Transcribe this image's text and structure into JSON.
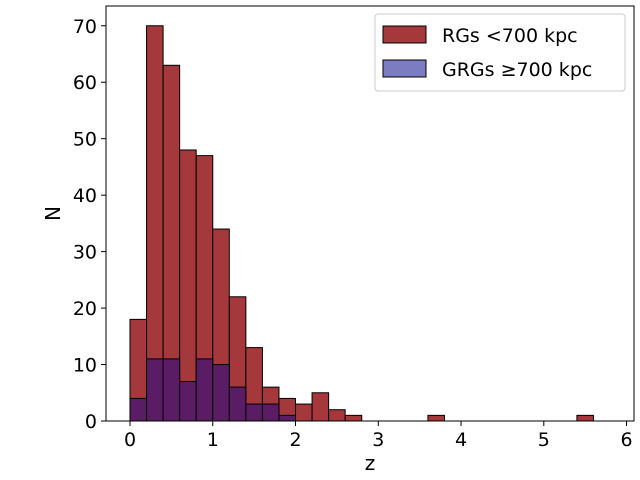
{
  "chart_data": {
    "type": "bar",
    "xlabel": "z",
    "ylabel": "N",
    "xlim": [
      -0.29,
      6.09
    ],
    "ylim": [
      0,
      73.5
    ],
    "x_ticks": [
      0,
      1,
      2,
      3,
      4,
      5,
      6
    ],
    "y_ticks": [
      0,
      10,
      20,
      30,
      40,
      50,
      60,
      70
    ],
    "bin_edges": [
      0.0,
      0.2,
      0.4,
      0.6,
      0.8,
      1.0,
      1.2,
      1.4,
      1.6,
      1.8,
      2.0,
      2.2,
      2.4,
      2.6,
      2.8,
      3.0,
      3.2,
      3.4,
      3.6,
      3.8,
      4.0,
      4.2,
      4.4,
      4.6,
      4.8,
      5.0,
      5.2,
      5.4,
      5.6,
      5.8
    ],
    "legend_position": "top-right",
    "series": [
      {
        "name": "RGs $<$700 kpc",
        "legend_text": "RGs <700 kpc",
        "color": "#a5383a",
        "values": [
          18,
          70,
          63,
          48,
          47,
          34,
          22,
          13,
          6,
          4,
          3,
          5,
          2,
          1,
          0,
          0,
          0,
          0,
          1,
          0,
          0,
          0,
          0,
          0,
          0,
          0,
          0,
          1,
          0
        ]
      },
      {
        "name": "GRGs $\\geq$700 kpc",
        "legend_text": "GRGs ≥700 kpc",
        "color": "#7c7cc3",
        "values": [
          4,
          11,
          11,
          7,
          11,
          10,
          6,
          3,
          3,
          1,
          0,
          0,
          0,
          0,
          0,
          0,
          0,
          0,
          0,
          0,
          0,
          0,
          0,
          0,
          0,
          0,
          0,
          0,
          0
        ]
      }
    ],
    "overlap_color": "#5a1c64"
  }
}
